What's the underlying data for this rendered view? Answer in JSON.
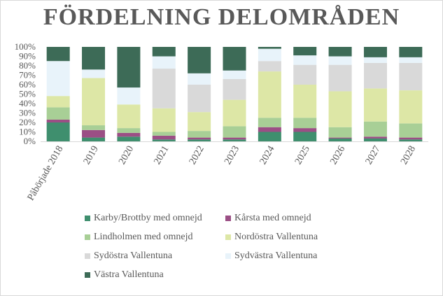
{
  "chart_data": {
    "type": "bar",
    "stacked": true,
    "title": "FÖRDELNING DELOMRÅDEN",
    "xlabel": "",
    "ylabel": "",
    "ylim": [
      0,
      100
    ],
    "ytick_labels": [
      "0%",
      "10%",
      "20%",
      "30%",
      "40%",
      "50%",
      "60%",
      "70%",
      "80%",
      "90%",
      "100%"
    ],
    "categories": [
      "Påbörjade 2018",
      "2019",
      "2020",
      "2021",
      "2022",
      "2023",
      "2024",
      "2025",
      "2026",
      "2027",
      "2028"
    ],
    "legend_position": "bottom",
    "grid": false,
    "series": [
      {
        "name": "Karby/Brottby med omnejd",
        "color": "#3f8f6e",
        "values": [
          20,
          4,
          5,
          2,
          2,
          2,
          10,
          10,
          3,
          3,
          2
        ]
      },
      {
        "name": "Kårsta med omnejd",
        "color": "#9b4f85",
        "values": [
          3,
          8,
          4,
          4,
          2,
          2,
          5,
          4,
          1,
          2,
          2
        ]
      },
      {
        "name": "Lindholmen med omnejd",
        "color": "#a8cf96",
        "values": [
          13,
          5,
          5,
          4,
          7,
          12,
          10,
          11,
          11,
          16,
          15
        ]
      },
      {
        "name": "Nordöstra Vallentuna",
        "color": "#dde7a6",
        "values": [
          12,
          50,
          25,
          25,
          20,
          28,
          49,
          35,
          38,
          35,
          35
        ]
      },
      {
        "name": "Sydöstra Vallentuna",
        "color": "#d9d9d9",
        "values": [
          0,
          0,
          0,
          42,
          29,
          22,
          11,
          21,
          28,
          27,
          29
        ]
      },
      {
        "name": "Sydvästra Vallentuna",
        "color": "#e8f3fa",
        "values": [
          37,
          9,
          18,
          13,
          12,
          9,
          13,
          10,
          9,
          6,
          6
        ]
      },
      {
        "name": "Västra Vallentuna",
        "color": "#3d6b57",
        "values": [
          15,
          24,
          43,
          10,
          28,
          25,
          2,
          9,
          10,
          11,
          11
        ]
      }
    ]
  }
}
